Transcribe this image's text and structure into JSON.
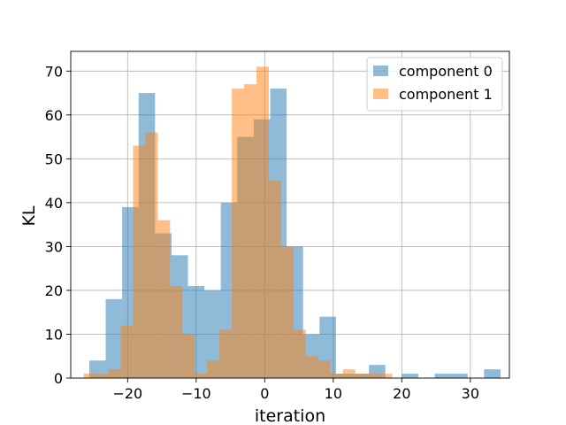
{
  "chart_data": {
    "type": "bar",
    "xlabel": "iteration",
    "ylabel": "KL",
    "xlim": [
      -28.3,
      35.7
    ],
    "ylim": [
      0,
      74.5
    ],
    "xticks": [
      -20,
      -10,
      0,
      10,
      20,
      30
    ],
    "xtick_labels": [
      "−20",
      "−10",
      "0",
      "10",
      "20",
      "30"
    ],
    "yticks": [
      0,
      10,
      20,
      30,
      40,
      50,
      60,
      70
    ],
    "ytick_labels": [
      "0",
      "10",
      "20",
      "30",
      "40",
      "50",
      "60",
      "70"
    ],
    "grid": true,
    "legend_position": "upper right",
    "series": [
      {
        "name": "component 0",
        "color": "#1f77b4",
        "opacity": 0.5,
        "bins": [
          {
            "x0": -25.6,
            "x1": -23.2,
            "y": 4
          },
          {
            "x0": -23.2,
            "x1": -20.8,
            "y": 18
          },
          {
            "x0": -20.8,
            "x1": -18.4,
            "y": 39
          },
          {
            "x0": -18.4,
            "x1": -16.0,
            "y": 65
          },
          {
            "x0": -16.0,
            "x1": -13.6,
            "y": 33
          },
          {
            "x0": -13.6,
            "x1": -11.2,
            "y": 28
          },
          {
            "x0": -11.2,
            "x1": -8.8,
            "y": 21
          },
          {
            "x0": -8.8,
            "x1": -6.4,
            "y": 20
          },
          {
            "x0": -6.4,
            "x1": -4.0,
            "y": 40
          },
          {
            "x0": -4.0,
            "x1": -1.6,
            "y": 55
          },
          {
            "x0": -1.6,
            "x1": 0.8,
            "y": 59
          },
          {
            "x0": 0.8,
            "x1": 3.2,
            "y": 66
          },
          {
            "x0": 3.2,
            "x1": 5.6,
            "y": 30
          },
          {
            "x0": 5.6,
            "x1": 8.0,
            "y": 10
          },
          {
            "x0": 8.0,
            "x1": 10.4,
            "y": 14
          },
          {
            "x0": 10.4,
            "x1": 12.8,
            "y": 1
          },
          {
            "x0": 12.8,
            "x1": 15.2,
            "y": 1
          },
          {
            "x0": 15.2,
            "x1": 17.6,
            "y": 3
          },
          {
            "x0": 17.6,
            "x1": 20.0,
            "y": 0
          },
          {
            "x0": 20.0,
            "x1": 22.4,
            "y": 1
          },
          {
            "x0": 22.4,
            "x1": 24.8,
            "y": 0
          },
          {
            "x0": 24.8,
            "x1": 27.2,
            "y": 1
          },
          {
            "x0": 27.2,
            "x1": 29.6,
            "y": 1
          },
          {
            "x0": 29.6,
            "x1": 32.0,
            "y": 0
          },
          {
            "x0": 32.0,
            "x1": 34.4,
            "y": 2
          }
        ]
      },
      {
        "name": "component 1",
        "color": "#ff7f0e",
        "opacity": 0.5,
        "bins": [
          {
            "x0": -26.4,
            "x1": -24.6,
            "y": 1
          },
          {
            "x0": -24.6,
            "x1": -22.8,
            "y": 1
          },
          {
            "x0": -22.8,
            "x1": -21.0,
            "y": 2
          },
          {
            "x0": -21.0,
            "x1": -19.2,
            "y": 12
          },
          {
            "x0": -19.2,
            "x1": -17.4,
            "y": 53
          },
          {
            "x0": -17.4,
            "x1": -15.6,
            "y": 56
          },
          {
            "x0": -15.6,
            "x1": -13.8,
            "y": 36
          },
          {
            "x0": -13.8,
            "x1": -12.0,
            "y": 21
          },
          {
            "x0": -12.0,
            "x1": -10.2,
            "y": 10
          },
          {
            "x0": -10.2,
            "x1": -8.4,
            "y": 1
          },
          {
            "x0": -8.4,
            "x1": -6.6,
            "y": 4
          },
          {
            "x0": -6.6,
            "x1": -4.8,
            "y": 11
          },
          {
            "x0": -4.8,
            "x1": -3.0,
            "y": 66
          },
          {
            "x0": -3.0,
            "x1": -1.2,
            "y": 67
          },
          {
            "x0": -1.2,
            "x1": 0.6,
            "y": 71
          },
          {
            "x0": 0.6,
            "x1": 2.4,
            "y": 45
          },
          {
            "x0": 2.4,
            "x1": 4.2,
            "y": 30
          },
          {
            "x0": 4.2,
            "x1": 6.0,
            "y": 11
          },
          {
            "x0": 6.0,
            "x1": 7.8,
            "y": 5
          },
          {
            "x0": 7.8,
            "x1": 9.6,
            "y": 4
          },
          {
            "x0": 9.6,
            "x1": 11.4,
            "y": 1
          },
          {
            "x0": 11.4,
            "x1": 13.2,
            "y": 2
          },
          {
            "x0": 13.2,
            "x1": 15.0,
            "y": 1
          },
          {
            "x0": 15.0,
            "x1": 16.8,
            "y": 1
          },
          {
            "x0": 16.8,
            "x1": 18.6,
            "y": 1
          }
        ]
      }
    ]
  }
}
